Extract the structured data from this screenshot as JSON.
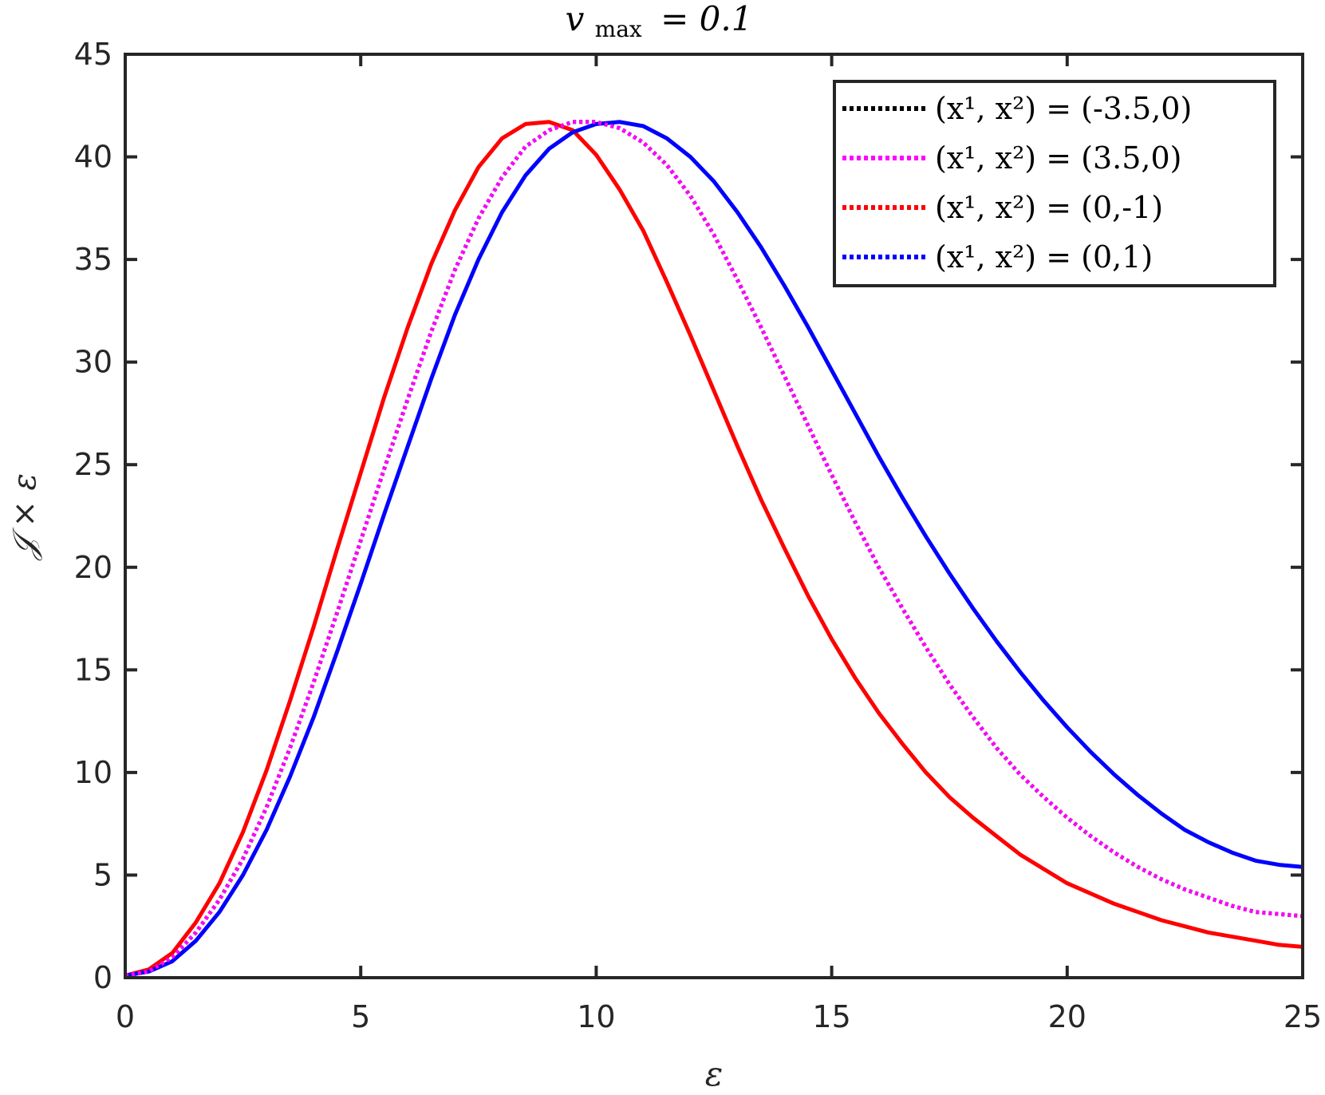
{
  "chart_data": {
    "type": "line",
    "title": "v_max = 0.1",
    "title_parts": {
      "base": "v",
      "sub": "max",
      "rest": "= 0.1"
    },
    "xlabel": "ε",
    "ylabel": "𝒥 × ε",
    "xlim": [
      0,
      25
    ],
    "ylim": [
      0,
      45
    ],
    "xticks": [
      0,
      5,
      10,
      15,
      20,
      25
    ],
    "yticks": [
      0,
      5,
      10,
      15,
      20,
      25,
      30,
      35,
      40,
      45
    ],
    "grid": false,
    "legend_position": "top-right",
    "series": [
      {
        "name": "(x¹, x²) = (-3.5,0)",
        "color": "#000000",
        "style": "dotted",
        "x": [
          0,
          0.5,
          1,
          1.5,
          2,
          2.5,
          3,
          3.5,
          4,
          4.5,
          5,
          5.5,
          6,
          6.5,
          7,
          7.5,
          8,
          8.5,
          9,
          9.5,
          10,
          10.5,
          11,
          11.5,
          12,
          12.5,
          13,
          13.5,
          14,
          14.5,
          15,
          15.5,
          16,
          16.5,
          17,
          17.5,
          18,
          18.5,
          19,
          19.5,
          20,
          20.5,
          21,
          21.5,
          22,
          22.5,
          23,
          23.5,
          24,
          24.5,
          25
        ],
        "y": [
          0.1,
          0.3,
          1.0,
          2.2,
          3.8,
          5.8,
          8.3,
          11.2,
          14.4,
          17.8,
          21.3,
          24.8,
          28.2,
          31.5,
          34.5,
          37.0,
          39.0,
          40.5,
          41.3,
          41.7,
          41.7,
          41.4,
          40.7,
          39.6,
          38.1,
          36.2,
          34.0,
          31.7,
          29.3,
          26.9,
          24.5,
          22.2,
          20.0,
          18.0,
          16.1,
          14.3,
          12.7,
          11.2,
          9.9,
          8.8,
          7.8,
          6.9,
          6.1,
          5.4,
          4.8,
          4.3,
          3.9,
          3.5,
          3.2,
          3.1,
          3.0
        ]
      },
      {
        "name": "(x¹, x²) = (3.5,0)",
        "color": "#ff00ff",
        "style": "dotted",
        "x": [
          0,
          0.5,
          1,
          1.5,
          2,
          2.5,
          3,
          3.5,
          4,
          4.5,
          5,
          5.5,
          6,
          6.5,
          7,
          7.5,
          8,
          8.5,
          9,
          9.5,
          10,
          10.5,
          11,
          11.5,
          12,
          12.5,
          13,
          13.5,
          14,
          14.5,
          15,
          15.5,
          16,
          16.5,
          17,
          17.5,
          18,
          18.5,
          19,
          19.5,
          20,
          20.5,
          21,
          21.5,
          22,
          22.5,
          23,
          23.5,
          24,
          24.5,
          25
        ],
        "y": [
          0.1,
          0.3,
          1.0,
          2.2,
          3.8,
          5.8,
          8.3,
          11.2,
          14.4,
          17.8,
          21.3,
          24.8,
          28.2,
          31.5,
          34.5,
          37.0,
          39.0,
          40.5,
          41.3,
          41.7,
          41.7,
          41.4,
          40.7,
          39.6,
          38.1,
          36.2,
          34.0,
          31.7,
          29.3,
          26.9,
          24.5,
          22.2,
          20.0,
          18.0,
          16.1,
          14.3,
          12.7,
          11.2,
          9.9,
          8.8,
          7.8,
          6.9,
          6.1,
          5.4,
          4.8,
          4.3,
          3.9,
          3.5,
          3.2,
          3.1,
          3.0
        ]
      },
      {
        "name": "(x¹, x²) = (0,-1)",
        "color": "#ff0000",
        "style": "solid",
        "legend_style": "dotted",
        "x": [
          0,
          0.5,
          1,
          1.5,
          2,
          2.5,
          3,
          3.5,
          4,
          4.5,
          5,
          5.5,
          6,
          6.5,
          7,
          7.5,
          8,
          8.5,
          9,
          9.5,
          10,
          10.5,
          11,
          11.5,
          12,
          12.5,
          13,
          13.5,
          14,
          14.5,
          15,
          15.5,
          16,
          16.5,
          17,
          17.5,
          18,
          18.5,
          19,
          19.5,
          20,
          20.5,
          21,
          21.5,
          22,
          22.5,
          23,
          23.5,
          24,
          24.5,
          25
        ],
        "y": [
          0.1,
          0.4,
          1.2,
          2.7,
          4.6,
          7.1,
          10.1,
          13.5,
          17.1,
          20.9,
          24.6,
          28.3,
          31.7,
          34.8,
          37.4,
          39.5,
          40.9,
          41.6,
          41.7,
          41.3,
          40.1,
          38.4,
          36.4,
          33.9,
          31.3,
          28.6,
          25.9,
          23.3,
          20.9,
          18.6,
          16.5,
          14.6,
          12.9,
          11.4,
          10.0,
          8.8,
          7.8,
          6.9,
          6.0,
          5.3,
          4.6,
          4.1,
          3.6,
          3.2,
          2.8,
          2.5,
          2.2,
          2.0,
          1.8,
          1.6,
          1.5
        ]
      },
      {
        "name": "(x¹, x²) = (0,1)",
        "color": "#0000ff",
        "style": "solid",
        "legend_style": "dotted",
        "x": [
          0,
          0.5,
          1,
          1.5,
          2,
          2.5,
          3,
          3.5,
          4,
          4.5,
          5,
          5.5,
          6,
          6.5,
          7,
          7.5,
          8,
          8.5,
          9,
          9.5,
          10,
          10.5,
          11,
          11.5,
          12,
          12.5,
          13,
          13.5,
          14,
          14.5,
          15,
          15.5,
          16,
          16.5,
          17,
          17.5,
          18,
          18.5,
          19,
          19.5,
          20,
          20.5,
          21,
          21.5,
          22,
          22.5,
          23,
          23.5,
          24,
          24.5,
          25
        ],
        "y": [
          0.1,
          0.3,
          0.8,
          1.8,
          3.2,
          5.0,
          7.2,
          9.8,
          12.7,
          15.9,
          19.2,
          22.6,
          25.9,
          29.2,
          32.3,
          35.0,
          37.3,
          39.1,
          40.4,
          41.2,
          41.6,
          41.7,
          41.5,
          40.9,
          40.0,
          38.8,
          37.3,
          35.6,
          33.7,
          31.7,
          29.6,
          27.5,
          25.4,
          23.4,
          21.5,
          19.7,
          18.0,
          16.4,
          14.9,
          13.5,
          12.2,
          11.0,
          9.9,
          8.9,
          8.0,
          7.2,
          6.6,
          6.1,
          5.7,
          5.5,
          5.4
        ]
      }
    ]
  }
}
